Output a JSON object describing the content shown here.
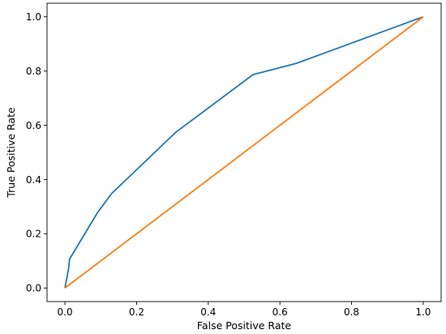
{
  "chart_data": {
    "type": "line",
    "xlabel": "False Positive Rate",
    "ylabel": "True Positive Rate",
    "xlim": [
      -0.05,
      1.05
    ],
    "ylim": [
      -0.05,
      1.05
    ],
    "xticks": [
      "0.0",
      "0.2",
      "0.4",
      "0.6",
      "0.8",
      "1.0"
    ],
    "yticks": [
      "0.0",
      "0.2",
      "0.4",
      "0.6",
      "0.8",
      "1.0"
    ],
    "grid": false,
    "series": [
      {
        "color": "#1f77b4",
        "x": [
          0.0,
          0.01,
          0.013,
          0.091,
          0.13,
          0.31,
          0.525,
          0.645,
          1.0
        ],
        "y": [
          0.0,
          0.07,
          0.107,
          0.278,
          0.348,
          0.575,
          0.787,
          0.828,
          1.0
        ]
      },
      {
        "color": "#ff7f0e",
        "x": [
          0.0,
          1.0
        ],
        "y": [
          0.0,
          1.0
        ]
      }
    ]
  }
}
